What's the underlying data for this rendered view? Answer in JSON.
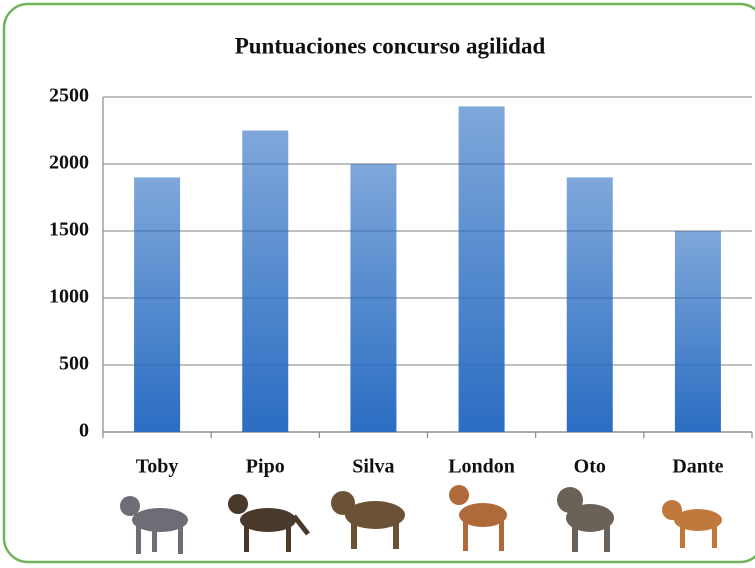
{
  "chart_data": {
    "type": "bar",
    "title": "Puntuaciones concurso agilidad",
    "categories": [
      "Toby",
      "Pipo",
      "Silva",
      "London",
      "Oto",
      "Dante"
    ],
    "values": [
      1900,
      2250,
      2000,
      2430,
      1900,
      1500
    ],
    "color": "#2a6dc2",
    "ylim": [
      0,
      2500
    ],
    "yticks": [
      0,
      500,
      1000,
      1500,
      2000,
      2500
    ],
    "grid": true
  }
}
